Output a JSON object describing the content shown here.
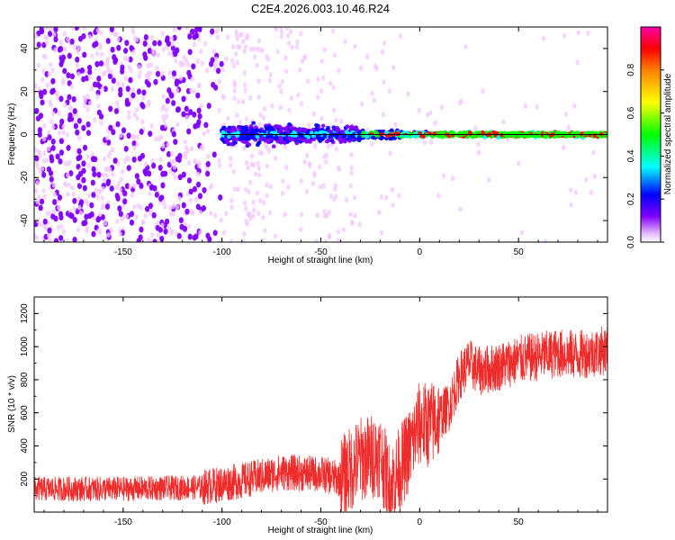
{
  "title": "C2E4.2026.003.10.46.R24",
  "colors": {
    "snr_line": "#ee2c2c",
    "zero_line": "#000000",
    "colormap": [
      "#ffffff",
      "#f0c8ff",
      "#8000ff",
      "#0000ff",
      "#00ffff",
      "#00ff00",
      "#ffff00",
      "#ff8000",
      "#ff0000",
      "#ff00ff"
    ]
  },
  "chart_data": [
    {
      "type": "heatmap",
      "name": "spectrogram",
      "xlabel": "Height of straight line (km)",
      "ylabel": "Frequency (Hz)",
      "xlim": [
        -195,
        95
      ],
      "ylim": [
        -50,
        50
      ],
      "xticks": [
        -150,
        -100,
        -50,
        0,
        50
      ],
      "yticks": [
        -40,
        -20,
        0,
        20,
        40
      ],
      "description_series": {
        "noise_region_x": [
          -195,
          -100
        ],
        "signal_band_start_km": -100,
        "signal_center_hz": 0
      },
      "colorbar": {
        "label": "Normalized spectral amplitude",
        "range": [
          0.0,
          1.0
        ],
        "ticks": [
          0.0,
          0.2,
          0.4,
          0.6,
          0.8
        ]
      }
    },
    {
      "type": "line",
      "name": "snr",
      "xlabel": "Height of straight line (km)",
      "ylabel": "SNR (10 * v/v)",
      "xlim": [
        -195,
        95
      ],
      "ylim": [
        0,
        1300
      ],
      "xticks": [
        -150,
        -100,
        -50,
        0,
        50
      ],
      "yticks": [
        200,
        400,
        600,
        800,
        1000,
        1200
      ],
      "trend": {
        "x": [
          -195,
          -150,
          -110,
          -90,
          -70,
          -50,
          -40,
          -30,
          -20,
          -15,
          -5,
          0,
          5,
          15,
          20,
          25,
          30,
          40,
          50,
          60,
          70,
          80,
          95
        ],
        "y": [
          140,
          140,
          150,
          190,
          240,
          230,
          200,
          320,
          350,
          150,
          380,
          540,
          520,
          640,
          820,
          900,
          850,
          880,
          920,
          940,
          960,
          950,
          980
        ]
      }
    }
  ]
}
